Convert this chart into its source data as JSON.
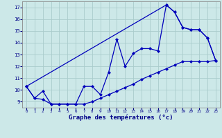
{
  "title": "",
  "xlabel": "Graphe des températures (°c)",
  "bg_color": "#cce8e8",
  "grid_color": "#aacccc",
  "line_color": "#0000bb",
  "xlim": [
    -0.5,
    23.5
  ],
  "ylim": [
    8.5,
    17.5
  ],
  "xticks": [
    0,
    1,
    2,
    3,
    4,
    5,
    6,
    7,
    8,
    9,
    10,
    11,
    12,
    13,
    14,
    15,
    16,
    17,
    18,
    19,
    20,
    21,
    22,
    23
  ],
  "yticks": [
    9,
    10,
    11,
    12,
    13,
    14,
    15,
    16,
    17
  ],
  "series1_x": [
    0,
    1,
    2,
    3,
    4,
    5,
    6,
    7,
    8,
    9,
    10,
    11,
    12,
    13,
    14,
    15,
    16,
    17,
    18,
    19,
    20,
    21,
    22,
    23
  ],
  "series1_y": [
    10.3,
    9.3,
    9.9,
    8.8,
    8.8,
    8.8,
    8.8,
    10.3,
    10.3,
    9.6,
    11.5,
    14.3,
    12.0,
    13.1,
    13.5,
    13.5,
    13.3,
    17.2,
    16.6,
    15.3,
    15.1,
    15.1,
    14.4,
    12.5
  ],
  "series2_x": [
    0,
    1,
    2,
    3,
    4,
    5,
    6,
    7,
    8,
    9,
    10,
    11,
    12,
    13,
    14,
    15,
    16,
    17,
    18,
    19,
    20,
    21,
    22,
    23
  ],
  "series2_y": [
    10.3,
    9.3,
    9.2,
    8.8,
    8.8,
    8.8,
    8.8,
    8.8,
    9.0,
    9.3,
    9.6,
    9.9,
    10.2,
    10.5,
    10.9,
    11.2,
    11.5,
    11.8,
    12.1,
    12.4,
    12.4,
    12.4,
    12.4,
    12.5
  ],
  "series3_x": [
    0,
    17,
    18,
    19,
    20,
    21,
    22,
    23
  ],
  "series3_y": [
    10.3,
    17.2,
    16.6,
    15.3,
    15.1,
    15.1,
    14.4,
    12.5
  ]
}
